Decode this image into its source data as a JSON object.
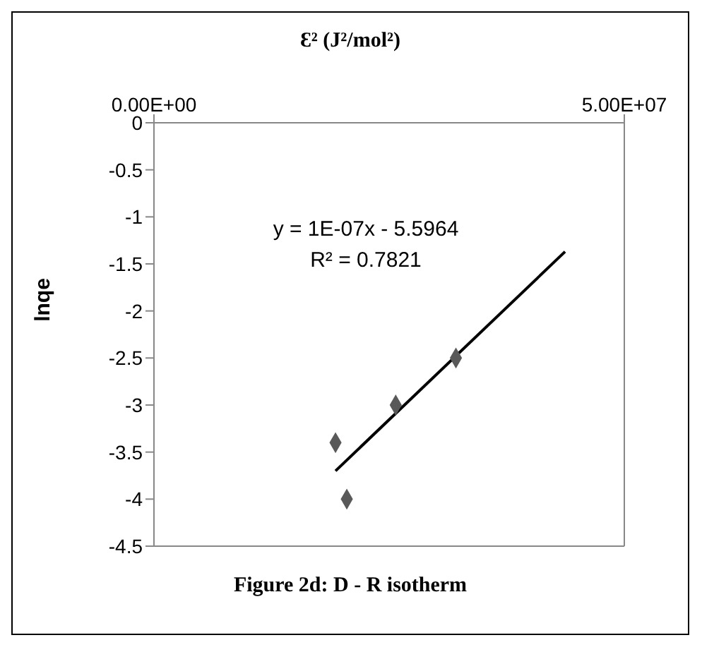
{
  "chart_data": {
    "type": "scatter",
    "title": "Figure 2d: D - R isotherm",
    "xlabel": "Ɛ² (J²/mol²)",
    "ylabel": "lnqe",
    "annotations": [
      "y = 1E-07x - 5.5964",
      "R² = 0.7821"
    ],
    "series": [
      {
        "color": "#595959",
        "marker": "diamond",
        "x": [
          19300000,
          20500000,
          25700000,
          32100000
        ],
        "values": [
          -3.4,
          -4.0,
          -3.0,
          -2.5
        ]
      },
      {
        "type": "line",
        "color": "#000000",
        "marker": "none",
        "line_style": "solid",
        "x": [
          19300000,
          43700000
        ],
        "values": [
          -3.7,
          -1.37
        ]
      }
    ],
    "xlim": [
      0,
      50000000
    ],
    "xticks": [
      {
        "value": 0,
        "label": "0.00E+00"
      },
      {
        "value": 50000000,
        "label": "5.00E+07"
      }
    ],
    "ylim": [
      -4.5,
      0
    ],
    "yticks": [
      0,
      -0.5,
      -1,
      -1.5,
      -2,
      -2.5,
      -3,
      -3.5,
      -4,
      -4.5
    ],
    "grid": false
  }
}
